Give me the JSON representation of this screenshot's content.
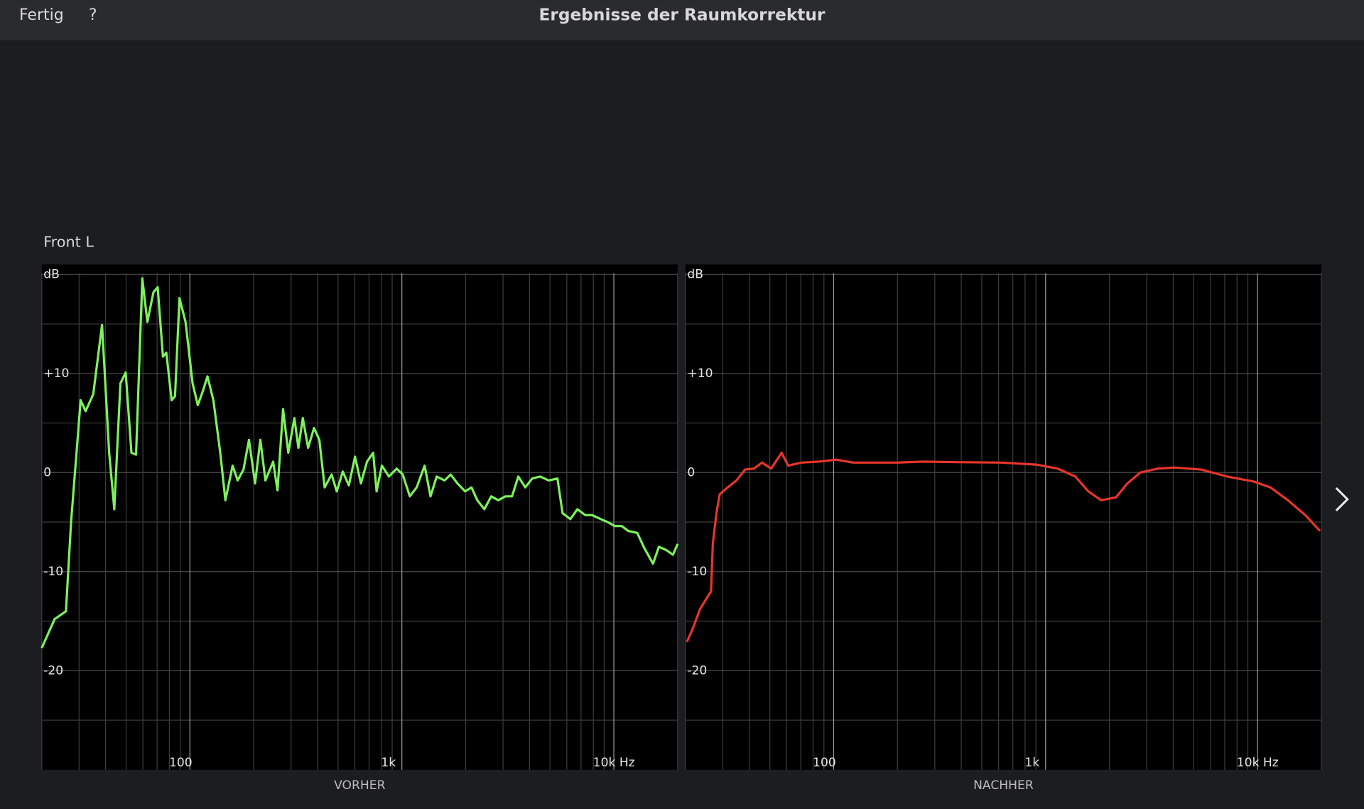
{
  "header": {
    "done": "Fertig",
    "help": "?",
    "title": "Ergebnisse der Raumkorrektur"
  },
  "section_label": "Front L",
  "chart_data": [
    {
      "type": "line",
      "xlabel": "VORHER",
      "xscale": "log",
      "grid": true,
      "minor_grid": true,
      "xlim": [
        20,
        20000
      ],
      "ylim": [
        -30,
        21
      ],
      "xticks": [
        100,
        {
          "value": 1000,
          "label": "1k"
        },
        {
          "value": 10000,
          "label": "10k Hz"
        }
      ],
      "yticks": [
        {
          "value": 20,
          "label": "dB"
        },
        {
          "value": 10,
          "label": "+10"
        },
        0,
        -10,
        -20
      ],
      "minor_yticks": [
        15,
        5,
        -5,
        -15,
        -25
      ],
      "x": [
        20,
        23,
        26,
        27.5,
        30.5,
        32.2,
        35,
        38.5,
        41.6,
        44,
        47,
        49.8,
        53,
        55.7,
        59.6,
        63,
        67.3,
        70.5,
        74.6,
        77.4,
        82,
        85.1,
        89.3,
        95.4,
        103,
        109,
        115,
        121,
        129,
        139,
        147,
        159,
        168,
        179,
        190,
        203,
        215,
        227,
        247,
        259,
        275,
        291,
        311,
        325,
        341,
        361,
        385,
        408,
        432,
        466,
        493,
        526,
        562,
        601,
        641,
        685,
        732,
        760,
        805,
        869,
        945,
        1010,
        1090,
        1175,
        1280,
        1365,
        1460,
        1590,
        1700,
        1830,
        1990,
        2130,
        2270,
        2450,
        2640,
        2850,
        3080,
        3310,
        3540,
        3820,
        4120,
        4490,
        4930,
        5420,
        5730,
        6240,
        6730,
        7330,
        7900,
        8690,
        9360,
        10100,
        10900,
        11700,
        12900,
        13900,
        15300,
        16300,
        17600,
        19000,
        20000
      ],
      "series": [
        {
          "color": "#7ef25c",
          "values": [
            -17.7,
            -14.8,
            -14.0,
            -5,
            7.3,
            6.2,
            7.9,
            14.9,
            2,
            -3.7,
            9,
            10.1,
            2,
            1.8,
            19.6,
            15.2,
            18.2,
            18.7,
            11.7,
            12.1,
            7.3,
            7.7,
            17.6,
            15.2,
            9,
            6.8,
            8.2,
            9.7,
            7.3,
            2,
            -2.8,
            0.7,
            -0.8,
            0.3,
            3.3,
            -1.1,
            3.3,
            -0.8,
            1.1,
            -1.8,
            6.4,
            2,
            5.5,
            2.5,
            5.5,
            2.5,
            4.5,
            3.3,
            -1.5,
            -0.2,
            -1.9,
            0.1,
            -1.3,
            1.6,
            -1.1,
            1.1,
            2,
            -1.9,
            0.7,
            -0.4,
            0.4,
            -0.2,
            -2.4,
            -1.5,
            0.7,
            -2.4,
            -0.4,
            -0.8,
            -0.2,
            -1.1,
            -1.9,
            -1.5,
            -2.8,
            -3.7,
            -2.4,
            -2.8,
            -2.4,
            -2.4,
            -0.4,
            -1.5,
            -0.6,
            -0.4,
            -0.8,
            -0.6,
            -4.1,
            -4.7,
            -3.7,
            -4.3,
            -4.3,
            -4.7,
            -5,
            -5.4,
            -5.4,
            -5.9,
            -6.1,
            -7.6,
            -9.2,
            -7.5,
            -7.8,
            -8.3,
            -7.2
          ]
        }
      ]
    },
    {
      "type": "line",
      "xlabel": "NACHHER",
      "xscale": "log",
      "grid": true,
      "minor_grid": true,
      "xlim": [
        20,
        20000
      ],
      "ylim": [
        -30,
        21
      ],
      "xticks": [
        100,
        {
          "value": 1000,
          "label": "1k"
        },
        {
          "value": 10000,
          "label": "10k Hz"
        }
      ],
      "yticks": [
        {
          "value": 20,
          "label": "dB"
        },
        {
          "value": 10,
          "label": "+10"
        },
        0,
        -10,
        -20
      ],
      "minor_yticks": [
        15,
        5,
        -5,
        -15,
        -25
      ],
      "x": [
        20.3,
        21.7,
        23.4,
        25.5,
        26.4,
        26.9,
        28,
        29,
        31.6,
        34.8,
        38.2,
        42,
        46,
        50.7,
        56.8,
        61,
        70.5,
        85,
        103,
        124,
        150,
        199,
        264,
        385,
        618,
        901,
        1140,
        1380,
        1590,
        1830,
        2150,
        2430,
        2800,
        3380,
        4080,
        5420,
        7190,
        9550,
        11500,
        13900,
        16800,
        19700
      ],
      "series": [
        {
          "color": "#e8352b",
          "values": [
            -17.1,
            -15.7,
            -13.8,
            -12.5,
            -12,
            -7.2,
            -4.1,
            -2.2,
            -1.5,
            -0.8,
            0.3,
            0.4,
            1,
            0.4,
            2,
            0.7,
            1,
            1.1,
            1.3,
            1,
            1,
            1,
            1.1,
            1.05,
            1,
            0.8,
            0.4,
            -0.4,
            -1.9,
            -2.8,
            -2.5,
            -1.1,
            0,
            0.4,
            0.5,
            0.3,
            -0.4,
            -0.9,
            -1.5,
            -2.8,
            -4.3,
            -5.9
          ]
        }
      ]
    }
  ]
}
